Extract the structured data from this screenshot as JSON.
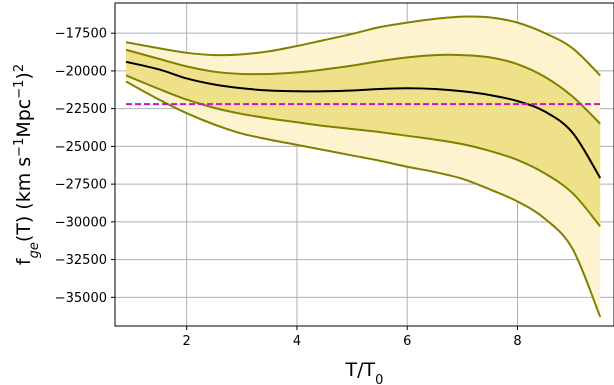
{
  "chart_data": {
    "type": "line",
    "xlabel": "T/T₀",
    "ylabel": "f_ge(T) (km s⁻¹Mpc⁻¹)²",
    "xlim": [
      0.7,
      9.75
    ],
    "ylim": [
      -36900,
      -15500
    ],
    "xticks": [
      2,
      4,
      6,
      8
    ],
    "yticks": [
      -17500,
      -20000,
      -22500,
      -25000,
      -27500,
      -30000,
      -32500,
      -35000
    ],
    "yticklabels": [
      "−17500",
      "−20000",
      "−22500",
      "−25000",
      "−27500",
      "−30000",
      "−32500",
      "−35000"
    ],
    "grid": true,
    "x": [
      0.9,
      1.5,
      2,
      2.5,
      3,
      3.5,
      4,
      4.5,
      5,
      5.5,
      6,
      6.5,
      7,
      7.5,
      8,
      8.5,
      9,
      9.5
    ],
    "series": [
      {
        "role": "outer-upper",
        "values": [
          -18100,
          -18500,
          -18800,
          -18950,
          -18900,
          -18700,
          -18350,
          -17950,
          -17550,
          -17100,
          -16800,
          -16550,
          -16400,
          -16450,
          -16800,
          -17500,
          -18500,
          -20300
        ]
      },
      {
        "role": "inner-upper",
        "values": [
          -18600,
          -19200,
          -19700,
          -20050,
          -20200,
          -20200,
          -20100,
          -19900,
          -19650,
          -19350,
          -19100,
          -18950,
          -18950,
          -19100,
          -19550,
          -20400,
          -21700,
          -23500
        ]
      },
      {
        "role": "median",
        "values": [
          -19400,
          -19900,
          -20500,
          -20900,
          -21150,
          -21300,
          -21350,
          -21350,
          -21300,
          -21200,
          -21150,
          -21200,
          -21350,
          -21600,
          -22000,
          -22700,
          -24100,
          -27100
        ]
      },
      {
        "role": "inner-lower",
        "values": [
          -20300,
          -21200,
          -21900,
          -22450,
          -22850,
          -23150,
          -23400,
          -23650,
          -23850,
          -24050,
          -24300,
          -24550,
          -24850,
          -25300,
          -25900,
          -26800,
          -28100,
          -30300
        ]
      },
      {
        "role": "outer-lower",
        "values": [
          -20700,
          -21900,
          -22800,
          -23550,
          -24150,
          -24550,
          -24900,
          -25250,
          -25600,
          -25950,
          -26350,
          -26700,
          -27150,
          -27850,
          -28650,
          -29800,
          -31800,
          -36300
        ]
      }
    ],
    "reference_line": {
      "value": -22200,
      "style": "dashed"
    },
    "colors": {
      "outer_band": "#fdf3cf",
      "inner_band": "#efe18a",
      "band_edges": "#808000",
      "median": "#000000",
      "reference": "#c912c9",
      "grid": "#b0b0b0"
    }
  }
}
